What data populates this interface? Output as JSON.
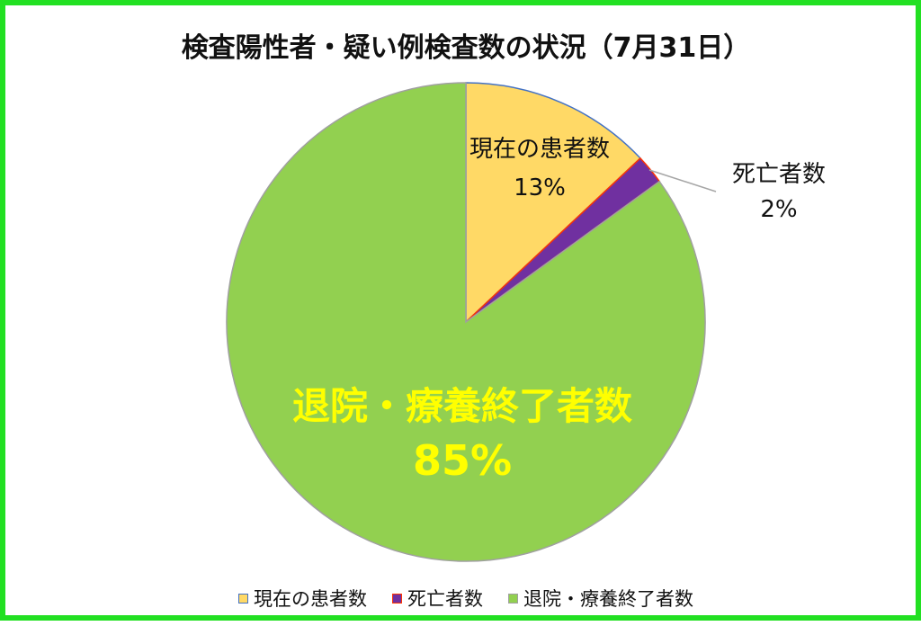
{
  "chart_data": {
    "type": "pie",
    "title": "検査陽性者・疑い例検査数の状況（7月31日）",
    "slices": [
      {
        "label": "現在の患者数",
        "value": 13,
        "display": "13%",
        "color": "#ffd966",
        "border": "#4472c4"
      },
      {
        "label": "死亡者数",
        "value": 2,
        "display": "2%",
        "color": "#7030a0",
        "border": "#ff3300"
      },
      {
        "label": "退院・療養終了者数",
        "value": 85,
        "display": "85%",
        "color": "#92d050",
        "border": "#a0a0a0"
      }
    ],
    "legend_position": "bottom",
    "colors": {
      "frame": "#22e022",
      "big_label": "#ffff00"
    }
  }
}
